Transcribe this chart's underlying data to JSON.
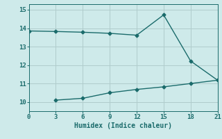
{
  "xlabel": "Humidex (Indice chaleur)",
  "ylabel": "",
  "bg_color": "#ceeaea",
  "line_color": "#1a6b6b",
  "grid_color": "#b0cccc",
  "line1_x": [
    0,
    3,
    6,
    9,
    12,
    15,
    18,
    21
  ],
  "line1_y": [
    13.85,
    13.82,
    13.78,
    13.72,
    13.62,
    14.72,
    12.22,
    11.18
  ],
  "line2_x": [
    3,
    6,
    9,
    12,
    15,
    18,
    21
  ],
  "line2_y": [
    10.1,
    10.2,
    10.5,
    10.68,
    10.82,
    11.0,
    11.18
  ],
  "xlim": [
    0,
    21
  ],
  "ylim": [
    9.5,
    15.3
  ],
  "xticks": [
    0,
    3,
    6,
    9,
    12,
    15,
    18,
    21
  ],
  "yticks": [
    10,
    11,
    12,
    13,
    14,
    15
  ],
  "marker": "D",
  "markersize": 2.5,
  "linewidth": 1.0,
  "tick_fontsize": 6.5,
  "xlabel_fontsize": 7
}
